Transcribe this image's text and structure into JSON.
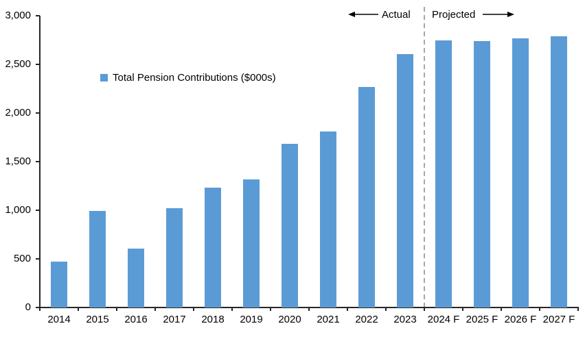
{
  "chart_data": {
    "type": "bar",
    "title": "",
    "legend": "Total Pension Contributions ($000s)",
    "categories": [
      "2014",
      "2015",
      "2016",
      "2017",
      "2018",
      "2019",
      "2020",
      "2021",
      "2022",
      "2023",
      "2024 F",
      "2025 F",
      "2026 F",
      "2027 F"
    ],
    "values": [
      475,
      990,
      605,
      1020,
      1230,
      1315,
      1680,
      1810,
      2270,
      2605,
      2750,
      2740,
      2770,
      2790
    ],
    "xlabel": "",
    "ylabel": "",
    "ylim": [
      0,
      3000
    ],
    "ytick_interval": 500,
    "ytick_labels": [
      "0",
      "500",
      "1,000",
      "1,500",
      "2,000",
      "2,500",
      "3,000"
    ],
    "grid": false,
    "legend_position": "inside-upper-left",
    "bar_color": "#5B9BD5",
    "divider_after_category": "2023",
    "divider_color": "#A6A6A6",
    "annotations": {
      "left": "Actual",
      "right": "Projected"
    }
  }
}
